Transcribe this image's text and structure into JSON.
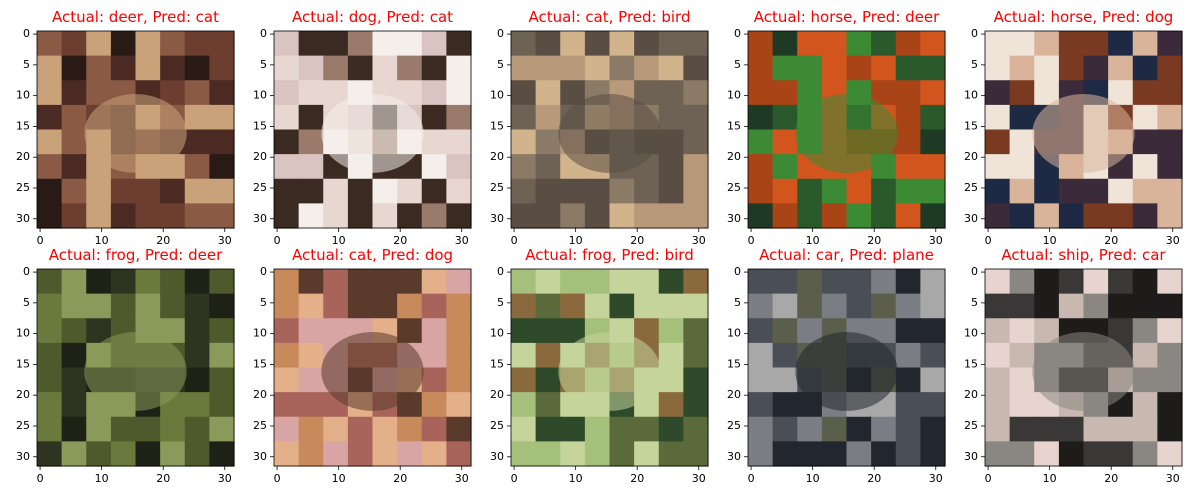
{
  "figure": {
    "panels": [
      {
        "title": "Actual: deer, Pred: cat",
        "image": "low-res photo: small tan deer standing in a dark brown forest",
        "colors": [
          "#4a2a22",
          "#6b3e30",
          "#c9a27a",
          "#2a1a16",
          "#8a5a44"
        ]
      },
      {
        "title": "Actual: dog, Pred: cat",
        "image": "low-res photo: dark brown dog lying on a light pink background with a white bone",
        "colors": [
          "#d9c4c2",
          "#3a2a22",
          "#f4efea",
          "#9a7a6a",
          "#e8d7d0"
        ]
      },
      {
        "title": "Actual: cat, Pred: bird",
        "image": "low-res photo: light tan cat sitting on gray gravel",
        "colors": [
          "#8a7a66",
          "#d2b48c",
          "#5a4e44",
          "#b89a7a",
          "#6e6254"
        ]
      },
      {
        "title": "Actual: horse, Pred: deer",
        "image": "low-res photo: orange horse on green grass",
        "colors": [
          "#1e3a24",
          "#d2551e",
          "#3c8a34",
          "#a84416",
          "#2a5a2c"
        ]
      },
      {
        "title": "Actual: horse, Pred: dog",
        "image": "low-res photo: white horse head with dark blue and brown background",
        "colors": [
          "#1e2a44",
          "#7a3a22",
          "#d9b49a",
          "#f0e4d8",
          "#3a2a3a"
        ]
      },
      {
        "title": "Actual: frog, Pred: deer",
        "image": "low-res photo: camouflaged frog among dark green foliage",
        "colors": [
          "#2e3420",
          "#4e5a2c",
          "#8a9a5a",
          "#1e2216",
          "#6a7a3c"
        ]
      },
      {
        "title": "Actual: cat, Pred: dog",
        "image": "low-res photo: orange cat curled up on a pink background",
        "colors": [
          "#c88a5a",
          "#e4b08a",
          "#5a3a2a",
          "#a8645a",
          "#d9a4a4"
        ]
      },
      {
        "title": "Actual: frog, Pred: bird",
        "image": "low-res photo: brown frog on light green background",
        "colors": [
          "#a4c07a",
          "#8a6a3c",
          "#c4d49a",
          "#5a6a3a",
          "#2e4a2a"
        ]
      },
      {
        "title": "Actual: car, Pred: plane",
        "image": "low-res photo: dark car driving on a curved gray road",
        "colors": [
          "#4a4e56",
          "#7a7e84",
          "#22262e",
          "#a8a8a8",
          "#5a5e4a"
        ]
      },
      {
        "title": "Actual: ship, Pred: car",
        "image": "low-res photo: gray boat seen from above on light pink background",
        "colors": [
          "#e8d4ce",
          "#3a3836",
          "#8a8682",
          "#c8b8b0",
          "#1e1c1a"
        ]
      }
    ],
    "x_ticks": [
      "0",
      "10",
      "20",
      "30"
    ],
    "y_ticks": [
      "0",
      "5",
      "10",
      "15",
      "20",
      "25",
      "30"
    ]
  },
  "chart_data": {
    "type": "image-grid",
    "rows": 2,
    "cols": 5,
    "image_size": 32,
    "xlim": [
      -0.5,
      31.5
    ],
    "ylim": [
      31.5,
      -0.5
    ],
    "x_ticks": [
      0,
      10,
      20,
      30
    ],
    "y_ticks": [
      0,
      5,
      10,
      15,
      20,
      25,
      30
    ],
    "title_color": "#ff0000",
    "panels": [
      {
        "actual": "deer",
        "pred": "cat"
      },
      {
        "actual": "dog",
        "pred": "cat"
      },
      {
        "actual": "cat",
        "pred": "bird"
      },
      {
        "actual": "horse",
        "pred": "deer"
      },
      {
        "actual": "horse",
        "pred": "dog"
      },
      {
        "actual": "frog",
        "pred": "deer"
      },
      {
        "actual": "cat",
        "pred": "dog"
      },
      {
        "actual": "frog",
        "pred": "bird"
      },
      {
        "actual": "car",
        "pred": "plane"
      },
      {
        "actual": "ship",
        "pred": "car"
      }
    ]
  }
}
